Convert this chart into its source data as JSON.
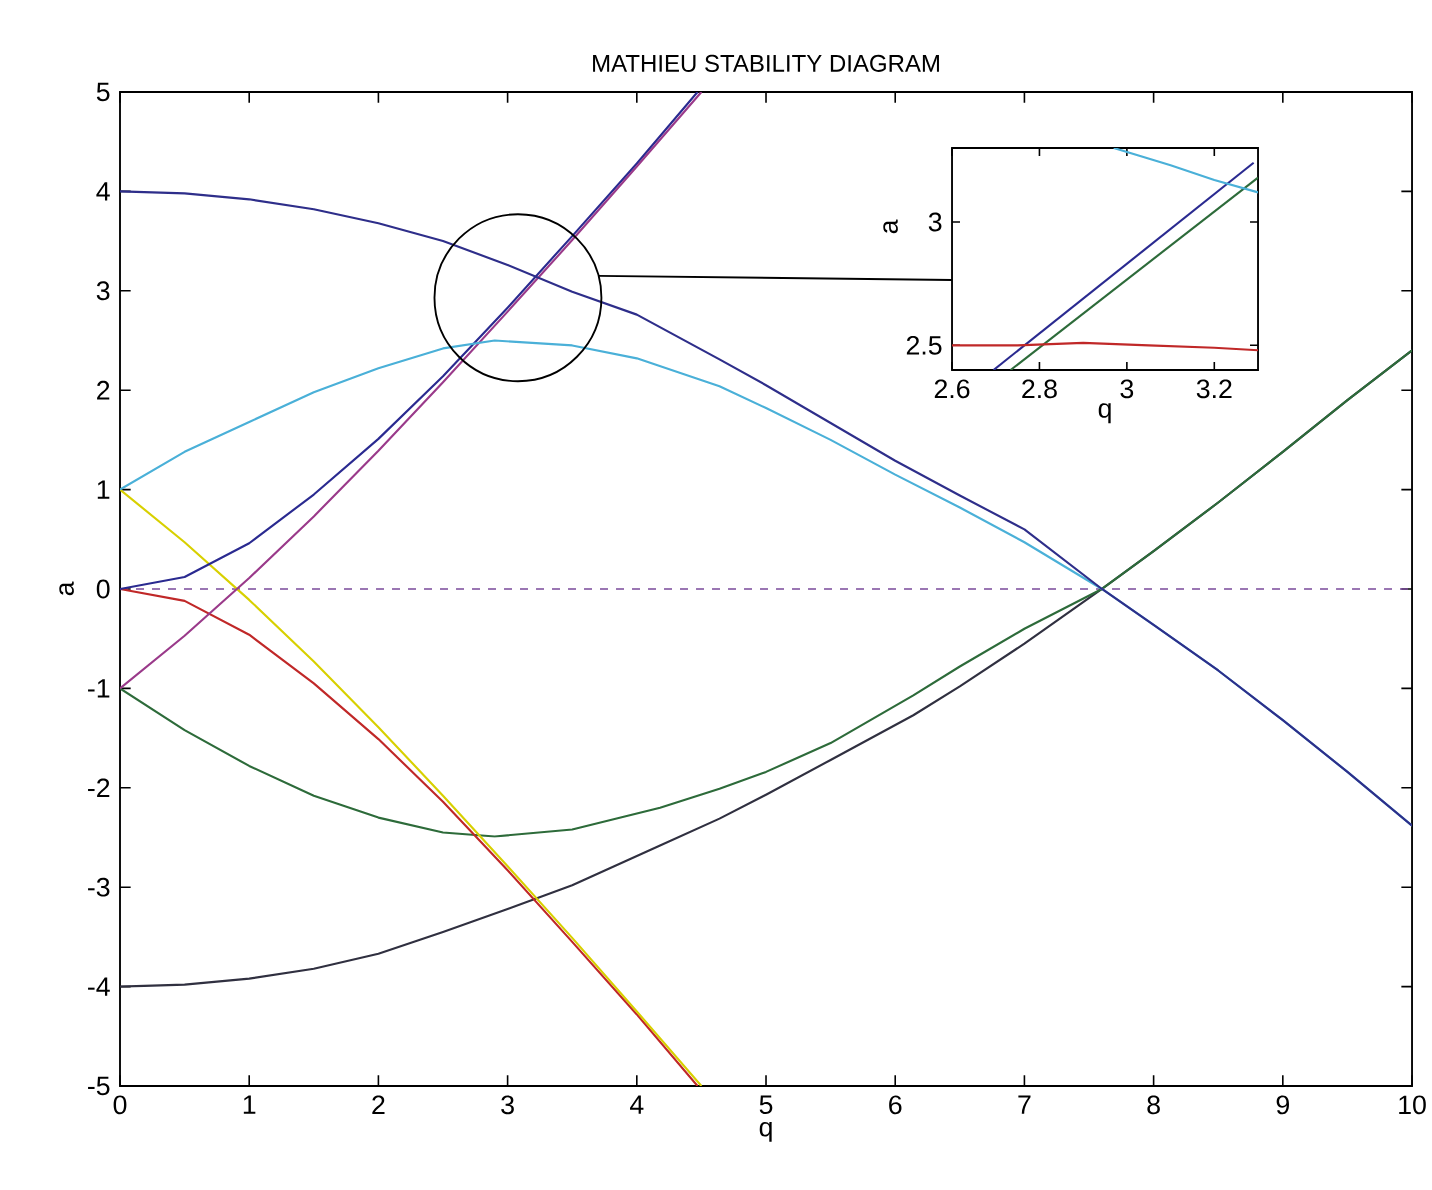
{
  "chart_data": [
    {
      "type": "line",
      "title": "MATHIEU STABILITY DIAGRAM",
      "xlabel": "q",
      "ylabel": "a",
      "xlim": [
        0,
        10
      ],
      "ylim": [
        -5,
        5
      ],
      "xticks": [
        0,
        1,
        2,
        3,
        4,
        5,
        6,
        7,
        8,
        9,
        10
      ],
      "yticks": [
        -5,
        -4,
        -3,
        -2,
        -1,
        0,
        1,
        2,
        3,
        4,
        5
      ],
      "series": [
        {
          "color": "#2e2e8a",
          "x": [
            0,
            0.5,
            1,
            1.5,
            2,
            2.5,
            3,
            3.5,
            4,
            4.64,
            5,
            5.5,
            6,
            6.5,
            7,
            7.6,
            8,
            8.5,
            9,
            9.5,
            10
          ],
          "values": [
            4,
            3.98,
            3.92,
            3.82,
            3.68,
            3.5,
            3.26,
            2.99,
            2.76,
            2.31,
            2.05,
            1.67,
            1.29,
            0.94,
            0.6,
            0,
            -0.36,
            -0.82,
            -1.32,
            -1.84,
            -2.38
          ]
        },
        {
          "color": "#4ab0d8",
          "x": [
            0,
            0.5,
            1,
            1.5,
            2,
            2.5,
            2.9,
            3.5,
            4,
            4.64,
            5,
            5.5,
            6,
            6.5,
            7,
            7.6,
            8,
            8.5,
            9,
            9.5,
            10
          ],
          "values": [
            1,
            1.38,
            1.68,
            1.98,
            2.22,
            2.42,
            2.5,
            2.45,
            2.32,
            2.04,
            1.82,
            1.5,
            1.15,
            0.82,
            0.47,
            0,
            -0.36,
            -0.82,
            -1.32,
            -1.84,
            -2.38
          ]
        },
        {
          "color": "#9a3a8a",
          "x": [
            0,
            0.5,
            1,
            1.5,
            2,
            2.5,
            3,
            3.5,
            4,
            4.5
          ],
          "values": [
            -1,
            -0.47,
            0.11,
            0.73,
            1.39,
            2.08,
            2.79,
            3.51,
            4.25,
            5
          ]
        },
        {
          "color": "#2a2a90",
          "x": [
            0,
            0.5,
            1,
            1.5,
            2,
            2.5,
            3,
            3.5,
            4,
            4.47
          ],
          "values": [
            0,
            0.12,
            0.46,
            0.95,
            1.51,
            2.14,
            2.83,
            3.55,
            4.28,
            5
          ]
        },
        {
          "color": "#d8d000",
          "x": [
            0,
            0.5,
            1,
            1.5,
            2,
            2.5,
            3,
            3.5,
            4,
            4.5
          ],
          "values": [
            1,
            0.47,
            -0.11,
            -0.73,
            -1.39,
            -2.08,
            -2.79,
            -3.51,
            -4.25,
            -5
          ]
        },
        {
          "color": "#c02828",
          "x": [
            0,
            0.5,
            1,
            1.5,
            2,
            2.5,
            3,
            3.5,
            4,
            4.47
          ],
          "values": [
            0,
            -0.12,
            -0.46,
            -0.95,
            -1.51,
            -2.14,
            -2.83,
            -3.55,
            -4.28,
            -5
          ]
        },
        {
          "color": "#2d6b3a",
          "x": [
            0,
            0.5,
            1,
            1.5,
            2,
            2.5,
            2.9,
            3.5,
            4.18,
            4.64,
            5,
            5.5,
            6.14,
            6.5,
            7,
            7.6,
            8,
            8.5,
            9,
            9.5,
            10
          ],
          "values": [
            -1,
            -1.42,
            -1.78,
            -2.08,
            -2.3,
            -2.45,
            -2.49,
            -2.42,
            -2.2,
            -2.01,
            -1.84,
            -1.55,
            -1.07,
            -0.78,
            -0.4,
            0,
            0.38,
            0.87,
            1.38,
            1.9,
            2.4
          ]
        },
        {
          "color": "#303040",
          "x": [
            0,
            0.5,
            1,
            1.5,
            2,
            2.5,
            3,
            3.5,
            4.18,
            4.64,
            5,
            5.5,
            6.14,
            6.5,
            7,
            7.6,
            8,
            8.5,
            9,
            9.5,
            10
          ],
          "values": [
            -4,
            -3.98,
            -3.92,
            -3.82,
            -3.67,
            -3.45,
            -3.22,
            -2.98,
            -2.58,
            -2.31,
            -2.07,
            -1.72,
            -1.27,
            -0.98,
            -0.55,
            0,
            0.38,
            0.87,
            1.38,
            1.9,
            2.4
          ]
        }
      ],
      "ref_lines": [
        {
          "axis": "y",
          "value": 0,
          "color": "#7a4a9a",
          "line_style": "dashed"
        }
      ]
    },
    {
      "type": "line",
      "xlabel": "q",
      "ylabel": "a",
      "xlim": [
        2.6,
        3.3
      ],
      "ylim": [
        2.4,
        3.3
      ],
      "xticks": [
        2.6,
        2.8,
        3,
        3.2
      ],
      "yticks": [
        2.5,
        3
      ],
      "series": [
        {
          "color": "#c02828",
          "x": [
            2.6,
            2.75,
            2.9,
            3.05,
            3.2,
            3.3
          ],
          "values": [
            2.5,
            2.5,
            2.51,
            2.5,
            2.49,
            2.48
          ]
        },
        {
          "color": "#4ab0d8",
          "x": [
            2.97,
            3.1,
            3.2,
            3.3
          ],
          "values": [
            3.3,
            3.23,
            3.17,
            3.12
          ]
        },
        {
          "color": "#2a2a90",
          "x": [
            2.695,
            3.29
          ],
          "values": [
            2.4,
            3.24
          ]
        },
        {
          "color": "#2d6b3a",
          "x": [
            2.734,
            3.3
          ],
          "values": [
            2.4,
            3.18
          ]
        }
      ]
    }
  ]
}
